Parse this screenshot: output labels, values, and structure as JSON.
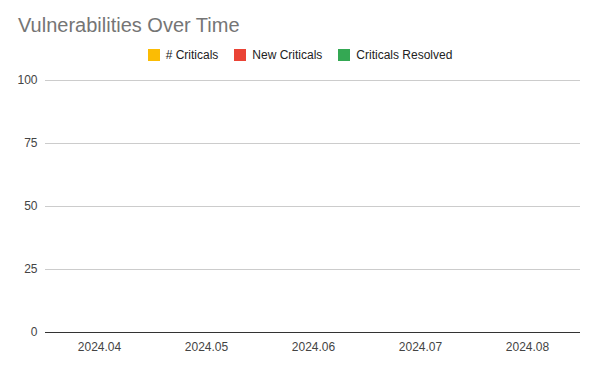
{
  "chart_data": {
    "type": "line",
    "title": "Vulnerabilities Over Time",
    "categories": [
      "2024.04",
      "2024.05",
      "2024.06",
      "2024.07",
      "2024.08"
    ],
    "series": [
      {
        "name": "# Criticals",
        "color": "#fbbc04",
        "values": [
          null,
          null,
          null,
          null,
          null
        ]
      },
      {
        "name": "New Criticals",
        "color": "#ea4335",
        "values": [
          null,
          null,
          null,
          null,
          null
        ]
      },
      {
        "name": "Criticals Resolved",
        "color": "#34a853",
        "values": [
          null,
          null,
          null,
          null,
          null
        ]
      }
    ],
    "ylim": [
      0,
      100
    ],
    "yticks": [
      0,
      25,
      50,
      75,
      100
    ],
    "grid": true,
    "legend": "top"
  }
}
